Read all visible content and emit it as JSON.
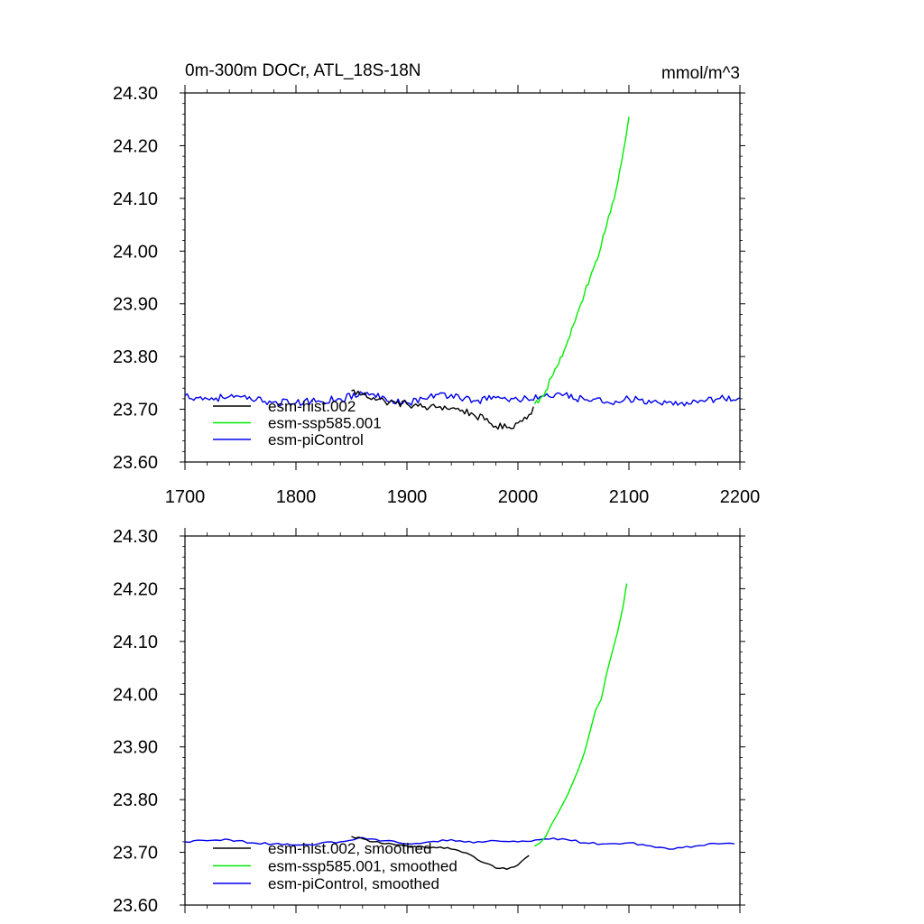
{
  "colors": {
    "esm_hist": "#000000",
    "esm_ssp585": "#00ee00",
    "esm_piControl": "#0000ee",
    "axes": "#000000"
  },
  "chart_data": [
    {
      "type": "line",
      "title": "0m-300m DOCr, ATL_18S-18N",
      "units": "mmol/m^3",
      "xlim": [
        1700,
        2200
      ],
      "ylim": [
        23.6,
        24.3
      ],
      "x_ticks": [
        "1700",
        "1800",
        "1900",
        "2000",
        "2100",
        "2200"
      ],
      "y_ticks": [
        "23.60",
        "23.70",
        "23.80",
        "23.90",
        "24.00",
        "24.10",
        "24.20",
        "24.30"
      ],
      "x_tick_labels_shown": true,
      "legend_position": "lower-left",
      "series": [
        {
          "name": "esm-hist.002",
          "color": "#000000",
          "x": [
            1850,
            1860,
            1870,
            1880,
            1890,
            1900,
            1910,
            1920,
            1930,
            1940,
            1950,
            1960,
            1970,
            1980,
            1990,
            2000,
            2010,
            2014
          ],
          "y": [
            23.735,
            23.728,
            23.722,
            23.715,
            23.712,
            23.71,
            23.706,
            23.703,
            23.705,
            23.702,
            23.698,
            23.69,
            23.68,
            23.668,
            23.665,
            23.674,
            23.69,
            23.705
          ]
        },
        {
          "name": "esm-ssp585.001",
          "color": "#00ee00",
          "x": [
            2015,
            2020,
            2025,
            2030,
            2035,
            2040,
            2045,
            2050,
            2055,
            2060,
            2065,
            2070,
            2075,
            2080,
            2085,
            2090,
            2095,
            2100
          ],
          "y": [
            23.71,
            23.72,
            23.735,
            23.76,
            23.78,
            23.8,
            23.83,
            23.86,
            23.89,
            23.92,
            23.95,
            23.98,
            24.01,
            24.05,
            24.09,
            24.13,
            24.19,
            24.255
          ]
        },
        {
          "name": "esm-piControl",
          "color": "#0000ee",
          "x": [
            1700,
            1720,
            1740,
            1760,
            1780,
            1800,
            1820,
            1840,
            1860,
            1880,
            1900,
            1920,
            1940,
            1960,
            1980,
            2000,
            2020,
            2040,
            2060,
            2080,
            2100,
            2120,
            2140,
            2160,
            2180,
            2200
          ],
          "y": [
            23.726,
            23.72,
            23.724,
            23.718,
            23.714,
            23.712,
            23.716,
            23.72,
            23.73,
            23.722,
            23.712,
            23.724,
            23.728,
            23.716,
            23.722,
            23.718,
            23.724,
            23.726,
            23.718,
            23.714,
            23.72,
            23.712,
            23.708,
            23.716,
            23.72,
            23.722
          ]
        }
      ]
    },
    {
      "type": "line",
      "title": "",
      "units": "",
      "xlim": [
        1700,
        2200
      ],
      "ylim": [
        23.6,
        24.3
      ],
      "x_ticks": [
        "1700",
        "1800",
        "1900",
        "2000",
        "2100",
        "2200"
      ],
      "y_ticks": [
        "23.60",
        "23.70",
        "23.80",
        "23.90",
        "24.00",
        "24.10",
        "24.20",
        "24.30"
      ],
      "x_tick_labels_shown": false,
      "legend_position": "lower-left",
      "series": [
        {
          "name": "esm-hist.002, smoothed",
          "color": "#000000",
          "x": [
            1850,
            1860,
            1870,
            1880,
            1890,
            1900,
            1910,
            1920,
            1930,
            1940,
            1950,
            1960,
            1970,
            1980,
            1990,
            2000,
            2010
          ],
          "y": [
            23.73,
            23.726,
            23.72,
            23.716,
            23.714,
            23.712,
            23.71,
            23.708,
            23.71,
            23.706,
            23.7,
            23.692,
            23.68,
            23.67,
            23.668,
            23.676,
            23.694
          ]
        },
        {
          "name": "esm-ssp585.001, smoothed",
          "color": "#00ee00",
          "x": [
            2015,
            2020,
            2025,
            2030,
            2035,
            2040,
            2045,
            2050,
            2055,
            2060,
            2065,
            2070,
            2075,
            2080,
            2085,
            2090,
            2095,
            2098
          ],
          "y": [
            23.712,
            23.718,
            23.73,
            23.752,
            23.77,
            23.79,
            23.81,
            23.835,
            23.86,
            23.89,
            23.93,
            23.97,
            23.99,
            24.04,
            24.08,
            24.12,
            24.17,
            24.21
          ]
        },
        {
          "name": "esm-piControl, smoothed",
          "color": "#0000ee",
          "x": [
            1700,
            1720,
            1740,
            1760,
            1780,
            1800,
            1820,
            1840,
            1860,
            1880,
            1900,
            1920,
            1940,
            1960,
            1980,
            2000,
            2020,
            2040,
            2060,
            2080,
            2100,
            2120,
            2140,
            2160,
            2180,
            2195
          ],
          "y": [
            23.72,
            23.722,
            23.724,
            23.718,
            23.716,
            23.714,
            23.716,
            23.72,
            23.728,
            23.722,
            23.716,
            23.72,
            23.724,
            23.718,
            23.722,
            23.72,
            23.724,
            23.726,
            23.718,
            23.716,
            23.718,
            23.712,
            23.706,
            23.712,
            23.716,
            23.716
          ]
        }
      ]
    }
  ]
}
